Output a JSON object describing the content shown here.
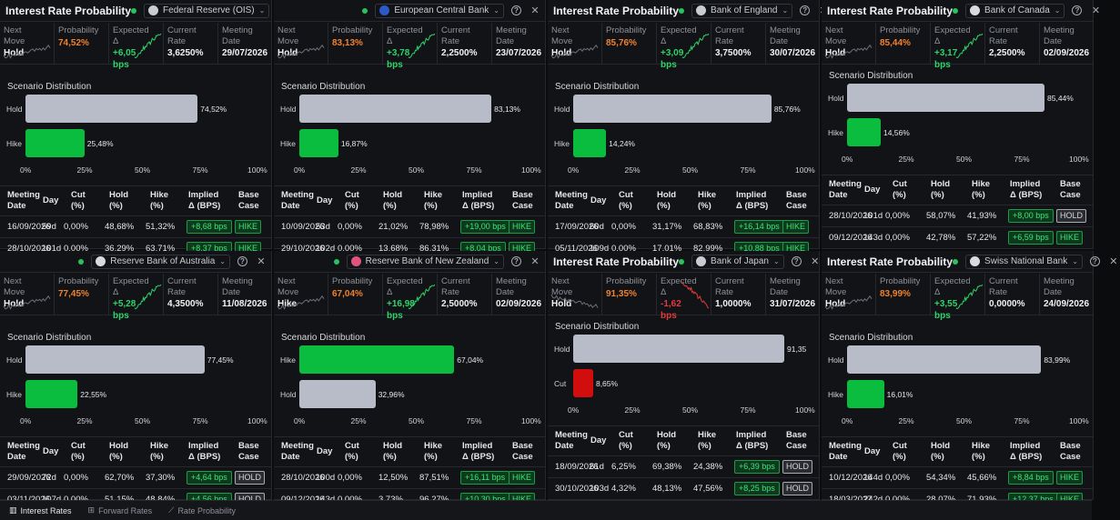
{
  "labels": {
    "title": "Interest Rate Probability",
    "next_move": [
      "Next",
      "Move"
    ],
    "probability": "Probability",
    "expected": [
      "Expected",
      "Δ"
    ],
    "current": [
      "Current",
      "Rate"
    ],
    "meeting": [
      "Meeting",
      "Date"
    ],
    "scenario": "Scenario Distribution",
    "table_headers": {
      "meeting": [
        "Meeting",
        "Date"
      ],
      "day": "Day",
      "cut": [
        "Cut",
        "(%)"
      ],
      "hold": [
        "Hold",
        "(%)"
      ],
      "hike": [
        "Hike",
        "(%)"
      ],
      "implied": [
        "Implied",
        "Δ (BPS)"
      ],
      "base": [
        "Base",
        "Case"
      ]
    },
    "ticks": [
      "0%",
      "25%",
      "50%",
      "75%",
      "100%"
    ]
  },
  "panels": [
    {
      "bank": "Federal Reserve (OIS)",
      "show_title": true,
      "icon_color": "#c9ccd2",
      "trend": "up",
      "next_move": "Hold",
      "probability": "74,52%",
      "expected": "+6,05 bps",
      "expected_color": "green",
      "current_rate": "3,6250%",
      "meeting_date": "29/07/2026",
      "bars": [
        {
          "label": "Hold",
          "pct": 74.52,
          "text": "74,52%",
          "color": "gray"
        },
        {
          "label": "Hike",
          "pct": 25.48,
          "text": "25,48%",
          "color": "green"
        }
      ],
      "rows": [
        {
          "date": "16/09/2026",
          "day": "59d",
          "cut": "0,00%",
          "hold": "48,68%",
          "hike": "51,32%",
          "implied": "+8,68 bps",
          "base": "HIKE"
        },
        {
          "date": "28/10/2026",
          "day": "101d",
          "cut": "0,00%",
          "hold": "36,29%",
          "hike": "63,71%",
          "implied": "+8,37 bps",
          "base": "HIKE"
        }
      ]
    },
    {
      "bank": "European Central Bank",
      "show_title": false,
      "icon_color": "#2d58c8",
      "trend": "up",
      "next_move": "Hold",
      "probability": "83,13%",
      "expected": "+3,78 bps",
      "expected_color": "green",
      "current_rate": "2,2500%",
      "meeting_date": "23/07/2026",
      "bars": [
        {
          "label": "Hold",
          "pct": 83.13,
          "text": "83,13%",
          "color": "gray"
        },
        {
          "label": "Hike",
          "pct": 16.87,
          "text": "16,87%",
          "color": "green"
        }
      ],
      "rows": [
        {
          "date": "10/09/2026",
          "day": "53d",
          "cut": "0,00%",
          "hold": "21,02%",
          "hike": "78,98%",
          "implied": "+19,00 bps",
          "base": "HIKE"
        },
        {
          "date": "29/10/2026",
          "day": "102d",
          "cut": "0,00%",
          "hold": "13,68%",
          "hike": "86,31%",
          "implied": "+8,04 bps",
          "base": "HIKE"
        }
      ]
    },
    {
      "bank": "Bank of England",
      "show_title": true,
      "icon_color": "#c9ccd2",
      "trend": "up",
      "next_move": "Hold",
      "probability": "85,76%",
      "expected": "+3,09 bps",
      "expected_color": "green",
      "current_rate": "3,7500%",
      "meeting_date": "30/07/2026",
      "bars": [
        {
          "label": "Hold",
          "pct": 85.76,
          "text": "85,76%",
          "color": "gray"
        },
        {
          "label": "Hike",
          "pct": 14.24,
          "text": "14,24%",
          "color": "green"
        }
      ],
      "rows": [
        {
          "date": "17/09/2026",
          "day": "60d",
          "cut": "0,00%",
          "hold": "31,17%",
          "hike": "68,83%",
          "implied": "+16,14 bps",
          "base": "HIKE"
        },
        {
          "date": "05/11/2026",
          "day": "109d",
          "cut": "0,00%",
          "hold": "17,01%",
          "hike": "82,99%",
          "implied": "+10,88 bps",
          "base": "HIKE"
        }
      ]
    },
    {
      "bank": "Bank of Canada",
      "show_title": true,
      "icon_color": "#d8dadf",
      "trend": "up",
      "next_move": "Hold",
      "probability": "85,44%",
      "expected": "+3,17 bps",
      "expected_color": "green",
      "current_rate": "2,2500%",
      "meeting_date": "02/09/2026",
      "bars": [
        {
          "label": "Hold",
          "pct": 85.44,
          "text": "85,44%",
          "color": "gray"
        },
        {
          "label": "Hike",
          "pct": 14.56,
          "text": "14,56%",
          "color": "green"
        }
      ],
      "rows": [
        {
          "date": "28/10/2026",
          "day": "101d",
          "cut": "0,00%",
          "hold": "58,07%",
          "hike": "41,93%",
          "implied": "+8,00 bps",
          "base": "HOLD"
        },
        {
          "date": "09/12/2026",
          "day": "143d",
          "cut": "0,00%",
          "hold": "42,78%",
          "hike": "57,22%",
          "implied": "+6,59 bps",
          "base": "HIKE"
        }
      ]
    },
    {
      "bank": "Reserve Bank of Australia",
      "show_title": false,
      "icon_color": "#d8dadf",
      "trend": "up",
      "next_move": "Hold",
      "probability": "77,45%",
      "expected": "+5,28 bps",
      "expected_color": "green",
      "current_rate": "4,3500%",
      "meeting_date": "11/08/2026",
      "bars": [
        {
          "label": "Hold",
          "pct": 77.45,
          "text": "77,45%",
          "color": "gray"
        },
        {
          "label": "Hike",
          "pct": 22.55,
          "text": "22,55%",
          "color": "green"
        }
      ],
      "rows": [
        {
          "date": "29/09/2026",
          "day": "72d",
          "cut": "0,00%",
          "hold": "62,70%",
          "hike": "37,30%",
          "implied": "+4,64 bps",
          "base": "HOLD"
        },
        {
          "date": "03/11/2026",
          "day": "107d",
          "cut": "0,00%",
          "hold": "51,15%",
          "hike": "48,84%",
          "implied": "+4,56 bps",
          "base": "HOLD"
        }
      ]
    },
    {
      "bank": "Reserve Bank of New Zealand",
      "show_title": false,
      "icon_color": "#e0557d",
      "trend": "up",
      "next_move": "Hike",
      "probability": "67,04%",
      "expected": "+16,98 bps",
      "expected_color": "green",
      "current_rate": "2,5000%",
      "meeting_date": "02/09/2026",
      "bars": [
        {
          "label": "Hike",
          "pct": 67.04,
          "text": "67,04%",
          "color": "green"
        },
        {
          "label": "Hold",
          "pct": 32.96,
          "text": "32,96%",
          "color": "gray"
        }
      ],
      "rows": [
        {
          "date": "28/10/2026",
          "day": "100d",
          "cut": "0,00%",
          "hold": "12,50%",
          "hike": "87,51%",
          "implied": "+16,11 bps",
          "base": "HIKE"
        },
        {
          "date": "09/12/2026",
          "day": "143d",
          "cut": "0,00%",
          "hold": "3,73%",
          "hike": "96,27%",
          "implied": "+10,30 bps",
          "base": "HIKE"
        }
      ]
    },
    {
      "bank": "Bank of Japan",
      "show_title": true,
      "icon_color": "#c9ccd2",
      "trend": "down",
      "next_move": "Hold",
      "probability": "91,35%",
      "expected": "-1,62 bps",
      "expected_color": "red",
      "current_rate": "1,0000%",
      "meeting_date": "31/07/2026",
      "bars": [
        {
          "label": "Hold",
          "pct": 91.35,
          "text": "91,35",
          "color": "gray"
        },
        {
          "label": "Cut",
          "pct": 8.65,
          "text": "8,65%",
          "color": "red"
        }
      ],
      "rows": [
        {
          "date": "18/09/2026",
          "day": "61d",
          "cut": "6,25%",
          "hold": "69,38%",
          "hike": "24,38%",
          "implied": "+6,39 bps",
          "base": "HOLD"
        },
        {
          "date": "30/10/2026",
          "day": "103d",
          "cut": "4,32%",
          "hold": "48,13%",
          "hike": "47,56%",
          "implied": "+8,25 bps",
          "base": "HOLD"
        }
      ]
    },
    {
      "bank": "Swiss National Bank",
      "show_title": true,
      "icon_color": "#d8dadf",
      "trend": "up",
      "next_move": "Hold",
      "probability": "83,99%",
      "expected": "+3,55 bps",
      "expected_color": "green",
      "current_rate": "0,0000%",
      "meeting_date": "24/09/2026",
      "bars": [
        {
          "label": "Hold",
          "pct": 83.99,
          "text": "83,99%",
          "color": "gray"
        },
        {
          "label": "Hike",
          "pct": 16.01,
          "text": "16,01%",
          "color": "green"
        }
      ],
      "rows": [
        {
          "date": "10/12/2026",
          "day": "144d",
          "cut": "0,00%",
          "hold": "54,34%",
          "hike": "45,66%",
          "implied": "+8,84 bps",
          "base": "HIKE"
        },
        {
          "date": "18/03/2027",
          "day": "242d",
          "cut": "0,00%",
          "hold": "28,07%",
          "hike": "71,93%",
          "implied": "+12,37 bps",
          "base": "HIKE"
        }
      ]
    }
  ],
  "bottom_tabs": [
    {
      "label": "Interest Rates",
      "icon": "chart-icon"
    },
    {
      "label": "Forward Rates",
      "icon": "forward-icon"
    },
    {
      "label": "Rate Probability",
      "icon": "trend-icon"
    }
  ]
}
